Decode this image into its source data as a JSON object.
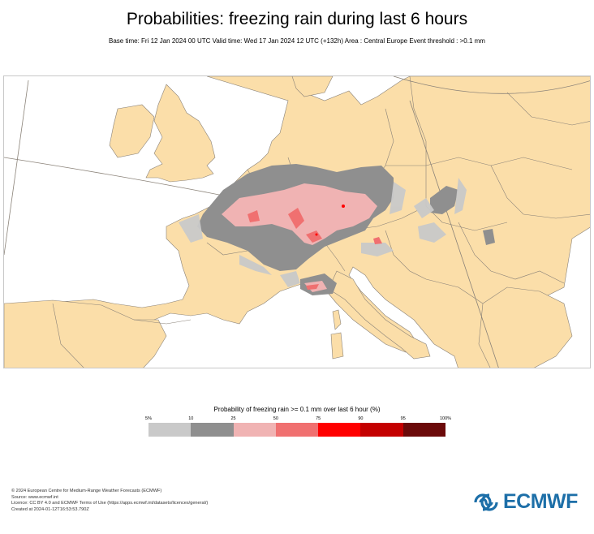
{
  "header": {
    "title": "Probabilities: freezing rain during last 6 hours",
    "subtitle": "Base time: Fri 12 Jan 2024 00 UTC Valid time: Wed 17 Jan 2024 12 UTC (+132h) Area : Central Europe Event threshold : >0.1 mm"
  },
  "map": {
    "land_color": "#fbdea9",
    "sea_color": "#ffffff",
    "border_color": "#8a8278",
    "region": "Central Europe"
  },
  "legend": {
    "title": "Probability of freezing rain >= 0.1 mm over last 6 hour (%)",
    "ticks": [
      "5%",
      "10",
      "25",
      "50",
      "75",
      "90",
      "95",
      "100%"
    ],
    "colors": [
      "#c9c9c9",
      "#8f8f8f",
      "#f0b3b3",
      "#f07070",
      "#ff0000",
      "#c40000",
      "#6b0a0a"
    ]
  },
  "footer": {
    "lines": [
      "© 2024 European Centre for Medium-Range Weather Forecasts (ECMWF)",
      "Source: www.ecmwf.int",
      "Licence: CC BY 4.0 and ECMWF Terms of Use (https://apps.ecmwf.int/datasets/licences/general/)",
      "Created at 2024-01-12T16:53:53.790Z"
    ]
  },
  "logo": {
    "text": "ECMWF",
    "color": "#1d6fa8",
    "icon": "ecmwf-logo-icon"
  }
}
